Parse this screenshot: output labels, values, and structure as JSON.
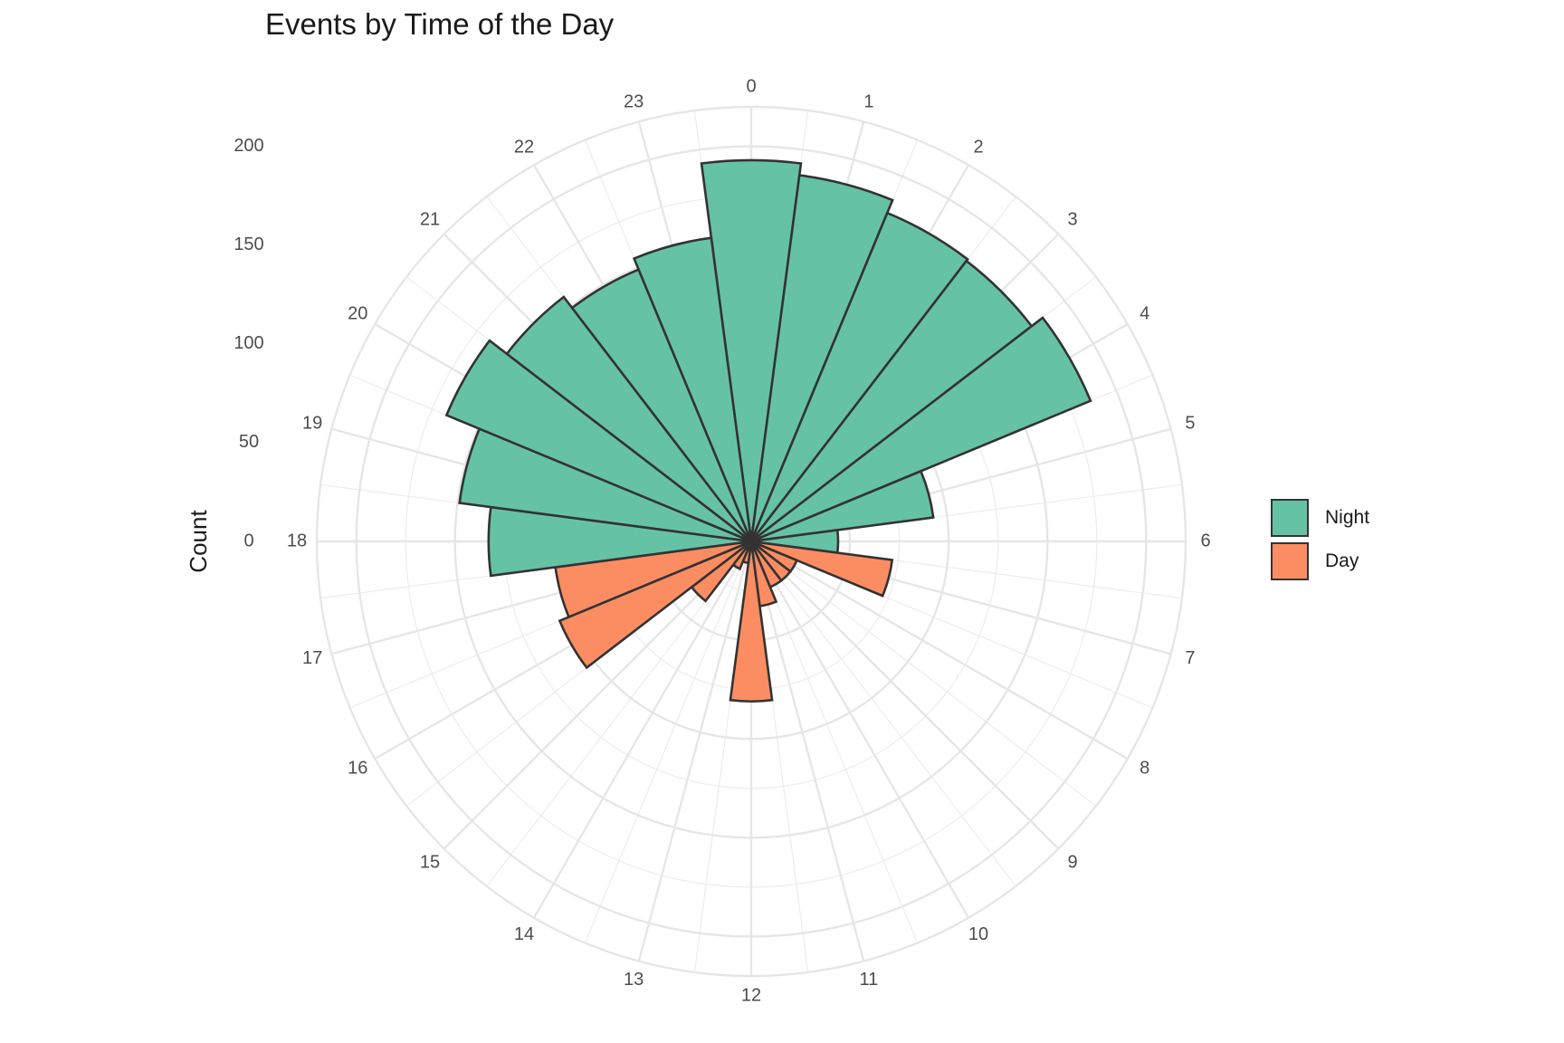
{
  "chart_data": {
    "type": "bar",
    "subtype": "polar",
    "title": "Events by Time of the Day",
    "xlabel": "",
    "ylabel": "Count",
    "categories": [
      "0",
      "1",
      "2",
      "3",
      "4",
      "5",
      "6",
      "7",
      "8",
      "9",
      "10",
      "11",
      "12",
      "13",
      "14",
      "15",
      "16",
      "17",
      "18",
      "19",
      "20",
      "21",
      "22",
      "23"
    ],
    "r_ticks": [
      "0",
      "50",
      "100",
      "150",
      "200"
    ],
    "ylim": [
      0,
      220
    ],
    "grid": true,
    "legend_position": "right",
    "series": [
      {
        "name": "Night",
        "color": "#66c2a5",
        "values": [
          193,
          187,
          180,
          179,
          186,
          93,
          44,
          0,
          0,
          0,
          0,
          0,
          0,
          0,
          0,
          0,
          0,
          0,
          133,
          149,
          167,
          156,
          149,
          155
        ]
      },
      {
        "name": "Day",
        "color": "#fc8d62",
        "values": [
          0,
          0,
          0,
          0,
          0,
          0,
          0,
          72,
          25,
          25,
          25,
          33,
          81,
          11,
          15,
          38,
          105,
          100,
          0,
          0,
          0,
          0,
          0,
          0
        ]
      }
    ],
    "legend": [
      {
        "label": "Night",
        "color": "#66c2a5"
      },
      {
        "label": "Day",
        "color": "#fc8d62"
      }
    ]
  }
}
